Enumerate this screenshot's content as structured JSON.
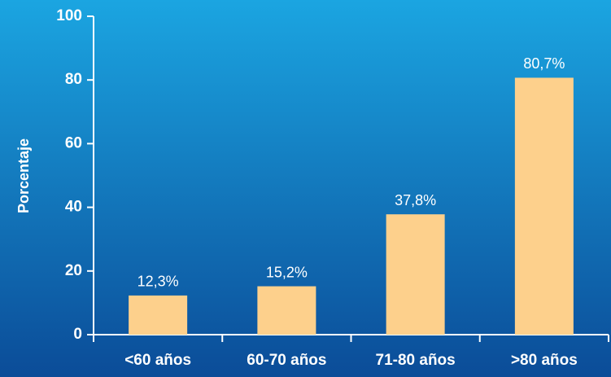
{
  "chart_data": {
    "type": "bar",
    "y_label": "Porcentaje",
    "categories": [
      "<60 años",
      "60-70 años",
      "71-80 años",
      ">80 años"
    ],
    "values": [
      12.3,
      15.2,
      37.8,
      80.7
    ],
    "value_labels": [
      "12,3%",
      "15,2%",
      "37,8%",
      "80,7%"
    ],
    "color": "#fdd08c",
    "ylim": [
      0,
      100
    ],
    "yticks": [
      0,
      20,
      40,
      60,
      80,
      100
    ]
  }
}
